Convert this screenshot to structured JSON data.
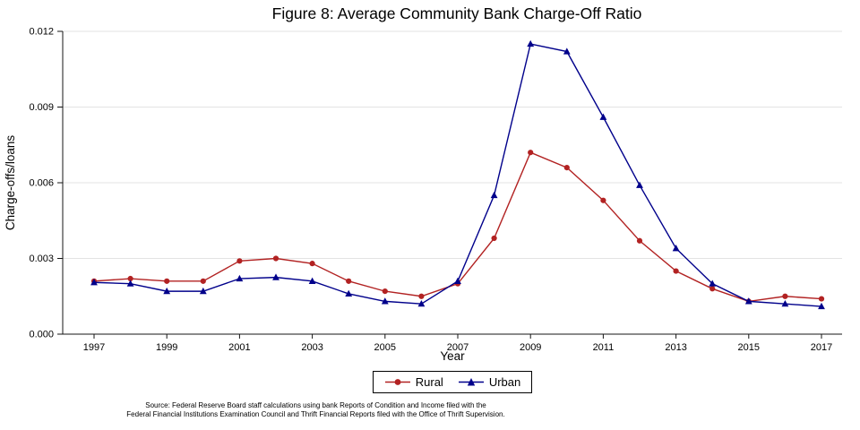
{
  "chart": {
    "title": "Figure 8: Average Community Bank Charge-Off Ratio",
    "xlabel": "Year",
    "ylabel": "Charge-offs/loans",
    "source_line1": "Source: Federal Reserve Board staff calculations using bank Reports of Condition and Income filed with the",
    "source_line2": "Federal Financial Institutions Examination Council and Thrift Financial Reports filed with the Office of Thrift Supervision."
  },
  "chart_data": {
    "type": "line",
    "x": [
      1997,
      1998,
      1999,
      2000,
      2001,
      2002,
      2003,
      2004,
      2005,
      2006,
      2007,
      2008,
      2009,
      2010,
      2011,
      2012,
      2013,
      2014,
      2015,
      2016,
      2017
    ],
    "series": [
      {
        "name": "Rural",
        "color": "#B22222",
        "marker": "circle",
        "values": [
          0.0021,
          0.0022,
          0.0021,
          0.0021,
          0.0029,
          0.003,
          0.0028,
          0.0021,
          0.0017,
          0.0015,
          0.002,
          0.0038,
          0.0072,
          0.0066,
          0.0053,
          0.0037,
          0.0025,
          0.0018,
          0.0013,
          0.0015,
          0.0014
        ]
      },
      {
        "name": "Urban",
        "color": "#00008B",
        "marker": "triangle",
        "values": [
          0.00205,
          0.002,
          0.0017,
          0.0017,
          0.0022,
          0.00225,
          0.0021,
          0.0016,
          0.0013,
          0.0012,
          0.0021,
          0.0055,
          0.0115,
          0.0112,
          0.0086,
          0.0059,
          0.0034,
          0.002,
          0.0013,
          0.0012,
          0.0011
        ]
      }
    ],
    "ylim": [
      0,
      0.012
    ],
    "yticks": [
      0,
      0.003,
      0.006,
      0.009,
      0.012
    ],
    "ytick_labels": [
      "0.000",
      "0.003",
      "0.006",
      "0.009",
      "0.012"
    ],
    "xticks": [
      1997,
      1999,
      2001,
      2003,
      2005,
      2007,
      2009,
      2011,
      2013,
      2015,
      2017
    ],
    "grid": "horizontal",
    "legend_position": "bottom"
  }
}
